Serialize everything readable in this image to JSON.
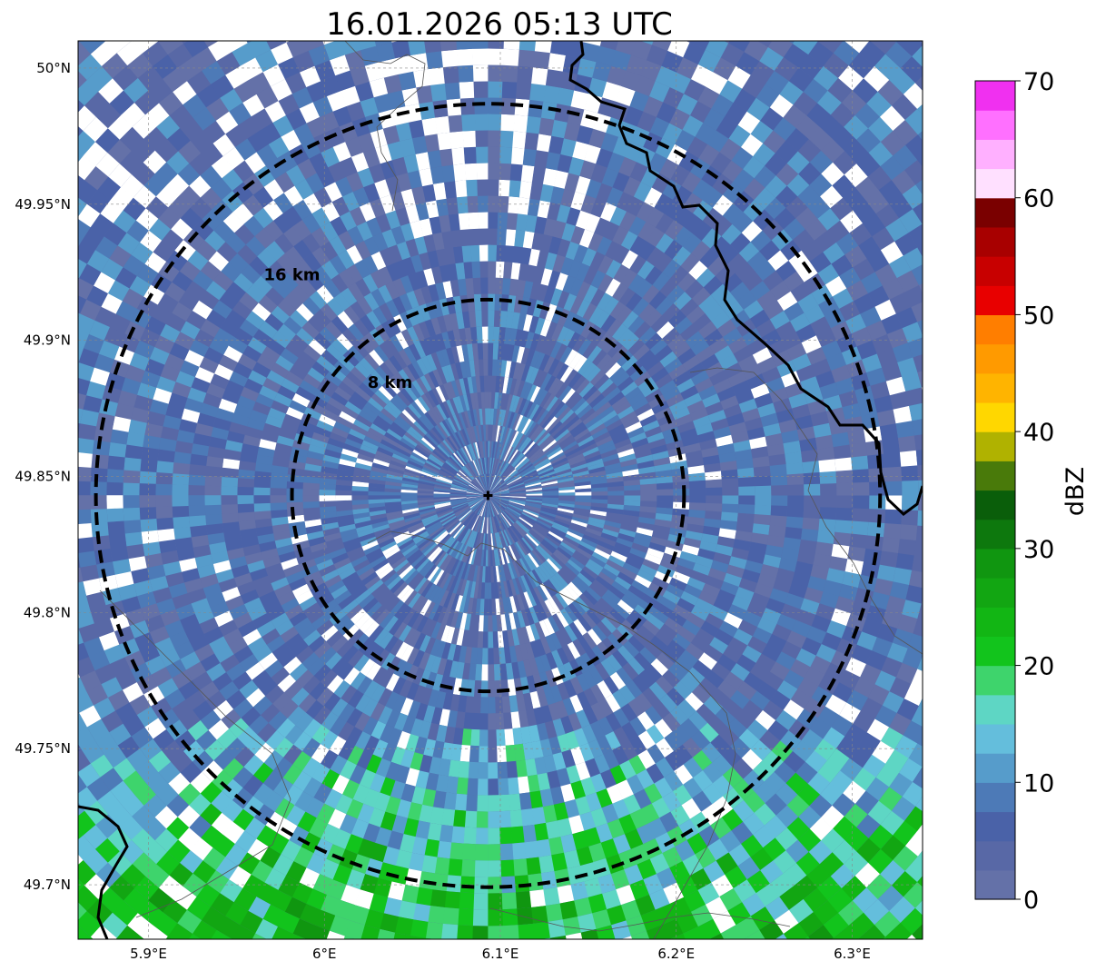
{
  "title": "16.01.2026 05:13 UTC",
  "map": {
    "lon_range": [
      5.86,
      6.34
    ],
    "lat_range": [
      49.68,
      50.01
    ],
    "x_ticks": [
      {
        "value": 5.9,
        "label": "5.9°E"
      },
      {
        "value": 6.0,
        "label": "6°E"
      },
      {
        "value": 6.1,
        "label": "6.1°E"
      },
      {
        "value": 6.2,
        "label": "6.2°E"
      },
      {
        "value": 6.3,
        "label": "6.3°E"
      }
    ],
    "y_ticks": [
      {
        "value": 50.0,
        "label": "50°N"
      },
      {
        "value": 49.95,
        "label": "49.95°N"
      },
      {
        "value": 49.9,
        "label": "49.9°N"
      },
      {
        "value": 49.85,
        "label": "49.85°N"
      },
      {
        "value": 49.8,
        "label": "49.8°N"
      },
      {
        "value": 49.75,
        "label": "49.75°N"
      },
      {
        "value": 49.7,
        "label": "49.7°N"
      }
    ],
    "radar_site": {
      "lon": 6.093,
      "lat": 49.843
    },
    "range_rings": [
      {
        "radius_km": 8,
        "label": "8 km"
      },
      {
        "radius_km": 16,
        "label": "16 km"
      }
    ],
    "grid": true
  },
  "colorbar": {
    "label": "dBZ",
    "min": 0,
    "max": 70,
    "tick_labels": [
      "0",
      "10",
      "20",
      "30",
      "40",
      "50",
      "60",
      "70"
    ],
    "colors": [
      "#6471a8",
      "#5868a6",
      "#4a62a8",
      "#4d7ab7",
      "#569ccb",
      "#64bedc",
      "#5ed6c4",
      "#3ed46c",
      "#12c41c",
      "#12b614",
      "#12a612",
      "#109610",
      "#0d780d",
      "#0a5e0a",
      "#497a0a",
      "#b0b200",
      "#ffd700",
      "#ffb400",
      "#ff9a00",
      "#ff7e00",
      "#e80000",
      "#c80000",
      "#a80000",
      "#7a0000",
      "#ffe0ff",
      "#ffb0ff",
      "#ff70ff",
      "#f030f0"
    ]
  }
}
